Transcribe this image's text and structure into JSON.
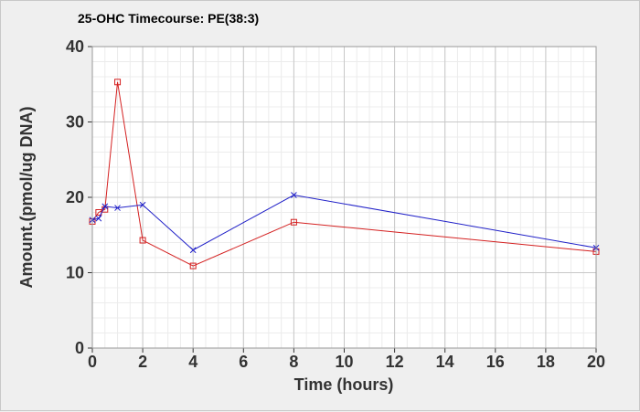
{
  "chart_data": {
    "type": "line",
    "title": "25-OHC Timecourse: PE(38:3)",
    "xlabel": "Time (hours)",
    "ylabel": "Amount.(pmol/ug DNA)",
    "xlim": [
      0,
      20
    ],
    "ylim": [
      0,
      40
    ],
    "xticks": [
      0,
      2,
      4,
      6,
      8,
      10,
      12,
      14,
      16,
      18,
      20
    ],
    "yticks": [
      0,
      10,
      20,
      30,
      40
    ],
    "grid": true,
    "legend": "none",
    "series": [
      {
        "marker": "square",
        "color": "#d42020",
        "x": [
          0,
          0.25,
          0.5,
          1,
          2,
          4,
          8,
          20
        ],
        "y": [
          16.8,
          18.0,
          18.4,
          35.3,
          14.3,
          10.9,
          16.7,
          12.8
        ]
      },
      {
        "marker": "cross",
        "color": "#2020c8",
        "x": [
          0,
          0.25,
          0.5,
          1,
          2,
          4,
          8,
          20
        ],
        "y": [
          17.0,
          17.2,
          18.8,
          18.6,
          19.0,
          13.0,
          20.3,
          13.3
        ]
      }
    ]
  }
}
